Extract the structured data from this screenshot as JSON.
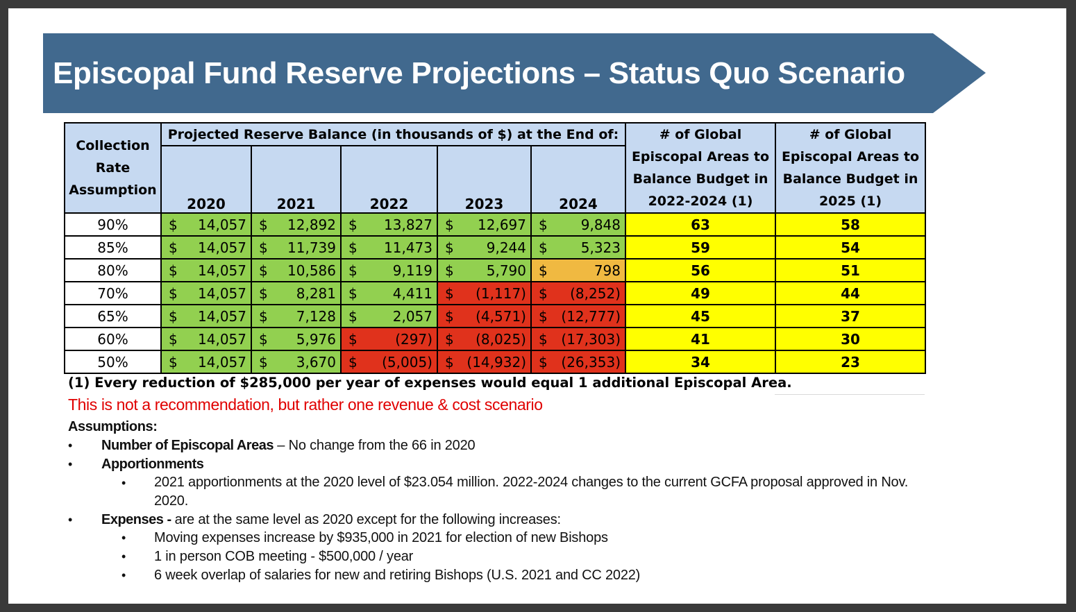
{
  "title": "Episcopal Fund Reserve Projections – Status Quo Scenario",
  "colors": {
    "banner": "#41698e",
    "header_bg": "#c6d9f1",
    "green": "#92d050",
    "orange": "#f0b941",
    "red": "#e0321c",
    "yellow": "#ffff00",
    "disclaimer": "#e00000"
  },
  "table": {
    "rate_header": [
      "Collection",
      "Rate",
      "Assumption"
    ],
    "projection_header": "Projected Reserve Balance (in thousands of $) at the End of:",
    "years": [
      "2020",
      "2021",
      "2022",
      "2023",
      "2024"
    ],
    "areas_header_1": [
      "# of Global",
      "Episcopal Areas to",
      "Balance Budget in",
      "2022-2024 (1)"
    ],
    "areas_header_2": [
      "# of Global",
      "Episcopal Areas to",
      "Balance Budget in",
      "2025 (1)"
    ],
    "currency": "$",
    "rows": [
      {
        "rate": "90%",
        "values": [
          "14,057",
          "12,892",
          "13,827",
          "12,697",
          "9,848"
        ],
        "status": [
          "g",
          "g",
          "g",
          "g",
          "g"
        ],
        "areas_2022_2024": "63",
        "areas_2025": "58"
      },
      {
        "rate": "85%",
        "values": [
          "14,057",
          "11,739",
          "11,473",
          "9,244",
          "5,323"
        ],
        "status": [
          "g",
          "g",
          "g",
          "g",
          "g"
        ],
        "areas_2022_2024": "59",
        "areas_2025": "54"
      },
      {
        "rate": "80%",
        "values": [
          "14,057",
          "10,586",
          "9,119",
          "5,790",
          "798"
        ],
        "status": [
          "g",
          "g",
          "g",
          "g",
          "o"
        ],
        "areas_2022_2024": "56",
        "areas_2025": "51"
      },
      {
        "rate": "70%",
        "values": [
          "14,057",
          "8,281",
          "4,411",
          "(1,117)",
          "(8,252)"
        ],
        "status": [
          "g",
          "g",
          "g",
          "r",
          "r"
        ],
        "areas_2022_2024": "49",
        "areas_2025": "44"
      },
      {
        "rate": "65%",
        "values": [
          "14,057",
          "7,128",
          "2,057",
          "(4,571)",
          "(12,777)"
        ],
        "status": [
          "g",
          "g",
          "g",
          "r",
          "r"
        ],
        "areas_2022_2024": "45",
        "areas_2025": "37"
      },
      {
        "rate": "60%",
        "values": [
          "14,057",
          "5,976",
          "(297)",
          "(8,025)",
          "(17,303)"
        ],
        "status": [
          "g",
          "g",
          "r",
          "r",
          "r"
        ],
        "areas_2022_2024": "41",
        "areas_2025": "30"
      },
      {
        "rate": "50%",
        "values": [
          "14,057",
          "3,670",
          "(5,005)",
          "(14,932)",
          "(26,353)"
        ],
        "status": [
          "g",
          "g",
          "r",
          "r",
          "r"
        ],
        "areas_2022_2024": "34",
        "areas_2025": "23"
      }
    ]
  },
  "footnote": "(1)  Every reduction of $285,000 per year of expenses would equal 1 additional Episcopal Area.",
  "disclaimer": "This is not a recommendation, but rather one revenue & cost scenario",
  "assumptions": {
    "heading": "Assumptions:",
    "areas_label": "Number of Episcopal Areas",
    "areas_text": " – No change from the 66 in 2020",
    "apportionments_label": "Apportionments",
    "apportionments_line1": "2021 apportionments at the 2020 level of $23.054 million.  2022-2024 changes to the current GCFA proposal approved in Nov.",
    "apportionments_line2": "2020.",
    "expenses_label": "Expenses - ",
    "expenses_text": " are at the same level as 2020 except for the following increases:",
    "expense_items": [
      "Moving expenses increase by $935,000 in 2021 for election of new Bishops",
      "1 in person COB meeting - $500,000 / year",
      "6 week overlap of salaries for new and retiring Bishops (U.S. 2021 and CC 2022)"
    ],
    "bullet": "•"
  }
}
